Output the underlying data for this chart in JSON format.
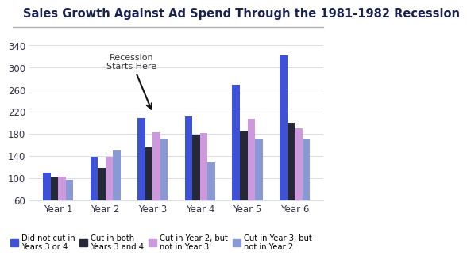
{
  "title": "Sales Growth Against Ad Spend Through the 1981-1982 Recession",
  "categories": [
    "Year 1",
    "Year 2",
    "Year 3",
    "Year 4",
    "Year 5",
    "Year 6"
  ],
  "series": {
    "did_not_cut": [
      110,
      138,
      208,
      212,
      268,
      322
    ],
    "cut_both": [
      101,
      118,
      155,
      178,
      184,
      200
    ],
    "cut_year2_not3": [
      103,
      138,
      183,
      182,
      207,
      190
    ],
    "cut_year3_not2": [
      97,
      150,
      170,
      128,
      170,
      170
    ]
  },
  "colors": {
    "did_not_cut": "#3d52d5",
    "cut_both": "#252836",
    "cut_year2_not3": "#cc99dd",
    "cut_year3_not2": "#8899d4"
  },
  "legend_labels": {
    "did_not_cut": "Did not cut in\nYears 3 or 4",
    "cut_both": "Cut in both\nYears 3 and 4",
    "cut_year2_not3": "Cut in Year 2, but\nnot in Year 3",
    "cut_year3_not2": "Cut in Year 3, but\nnot in Year 2"
  },
  "ylim": [
    60,
    360
  ],
  "yticks": [
    60,
    100,
    140,
    180,
    220,
    260,
    300,
    340
  ],
  "annotation_text": "Recession\nStarts Here",
  "background_color": "#ffffff",
  "title_color": "#1a2350",
  "title_fontsize": 10.5,
  "tick_fontsize": 8.5,
  "bar_width": 0.16,
  "grid_color": "#d8dce8",
  "separator_color": "#aaaaaa"
}
